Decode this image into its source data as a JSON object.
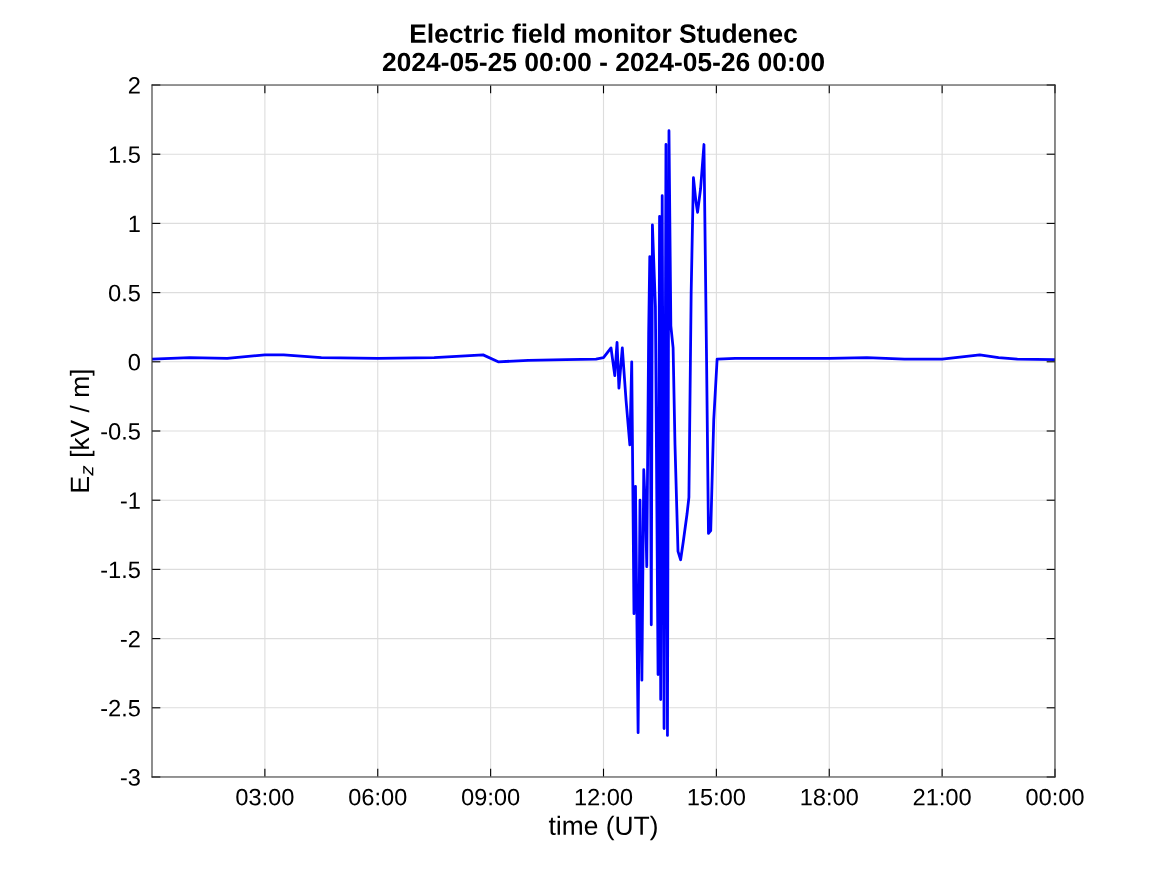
{
  "chart_data": {
    "type": "line",
    "title": "Electric field monitor Studenec",
    "subtitle": "2024-05-25 00:00 - 2024-05-26 00:00",
    "xlabel": "time (UT)",
    "ylabel": "E$_{z}$ [kV / m]",
    "xlim": [
      0,
      24
    ],
    "xticks": [
      {
        "value": 3,
        "label": "03:00"
      },
      {
        "value": 6,
        "label": "06:00"
      },
      {
        "value": 9,
        "label": "09:00"
      },
      {
        "value": 12,
        "label": "12:00"
      },
      {
        "value": 15,
        "label": "15:00"
      },
      {
        "value": 18,
        "label": "18:00"
      },
      {
        "value": 21,
        "label": "21:00"
      },
      {
        "value": 24,
        "label": "00:00"
      }
    ],
    "ylim": [
      -3,
      2
    ],
    "yticks": [
      -3,
      -2.5,
      -2,
      -1.5,
      -1,
      -0.5,
      0,
      0.5,
      1,
      1.5,
      2
    ],
    "grid": true,
    "series": [
      {
        "color": "#0000ff",
        "x": [
          0,
          1,
          2,
          3,
          3.5,
          4.5,
          6,
          7.5,
          8.8,
          9.2,
          10,
          11,
          11.8,
          12.0,
          12.2,
          12.3,
          12.36,
          12.41,
          12.5,
          12.6,
          12.7,
          12.75,
          12.81,
          12.85,
          12.92,
          12.97,
          13.02,
          13.07,
          13.12,
          13.15,
          13.2,
          13.23,
          13.27,
          13.3,
          13.38,
          13.45,
          13.49,
          13.52,
          13.56,
          13.61,
          13.66,
          13.7,
          13.74,
          13.79,
          13.85,
          13.9,
          13.98,
          14.05,
          14.12,
          14.22,
          14.27,
          14.33,
          14.39,
          14.46,
          14.5,
          14.58,
          14.67,
          14.74,
          14.79,
          14.85,
          14.93,
          15.02,
          15.5,
          16,
          18,
          19,
          20,
          21,
          22,
          22.5,
          23,
          24
        ],
        "values": [
          0.02,
          0.03,
          0.025,
          0.05,
          0.05,
          0.03,
          0.025,
          0.03,
          0.05,
          0.0,
          0.01,
          0.015,
          0.02,
          0.03,
          0.1,
          -0.1,
          0.14,
          -0.19,
          0.1,
          -0.28,
          -0.6,
          0.0,
          -1.82,
          -0.9,
          -2.68,
          -1.0,
          -2.3,
          -0.78,
          -1.1,
          -1.48,
          0.2,
          0.76,
          -1.9,
          0.99,
          0.4,
          -2.26,
          1.05,
          -2.44,
          1.2,
          -2.65,
          1.57,
          -2.7,
          1.67,
          0.26,
          0.1,
          -0.6,
          -1.37,
          -1.43,
          -1.3,
          -1.1,
          -0.98,
          0.5,
          1.33,
          1.15,
          1.08,
          1.25,
          1.57,
          0.0,
          -1.24,
          -1.22,
          -0.42,
          0.02,
          0.025,
          0.025,
          0.025,
          0.03,
          0.02,
          0.02,
          0.05,
          0.03,
          0.02,
          0.015
        ]
      }
    ]
  }
}
